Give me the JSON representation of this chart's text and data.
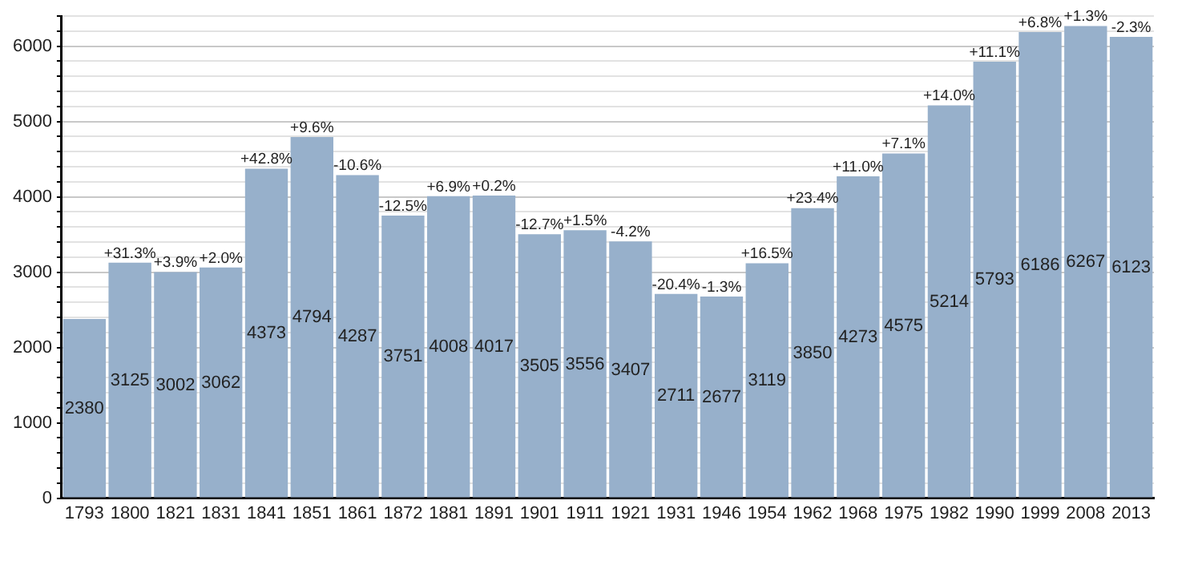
{
  "chart_data": {
    "type": "bar",
    "categories": [
      "1793",
      "1800",
      "1821",
      "1831",
      "1841",
      "1851",
      "1861",
      "1872",
      "1881",
      "1891",
      "1901",
      "1911",
      "1921",
      "1931",
      "1946",
      "1954",
      "1962",
      "1968",
      "1975",
      "1982",
      "1990",
      "1999",
      "2008",
      "2013"
    ],
    "values": [
      2380,
      3125,
      3002,
      3062,
      4373,
      4794,
      4287,
      3751,
      4008,
      4017,
      3505,
      3556,
      3407,
      2711,
      2677,
      3119,
      3850,
      4273,
      4575,
      5214,
      5793,
      6186,
      6267,
      6123
    ],
    "color": "#97b0cb",
    "data_labels": true,
    "ylim": [
      0,
      6400
    ],
    "yticks": [
      0,
      {
        "value": 200,
        "label": null
      },
      {
        "value": 400,
        "label": null
      },
      {
        "value": 600,
        "label": null
      },
      {
        "value": 800,
        "label": null
      },
      1000,
      {
        "value": 1200,
        "label": null
      },
      {
        "value": 1400,
        "label": null
      },
      {
        "value": 1600,
        "label": null
      },
      {
        "value": 1800,
        "label": null
      },
      2000,
      {
        "value": 2200,
        "label": null
      },
      {
        "value": 2400,
        "label": null
      },
      {
        "value": 2600,
        "label": null
      },
      {
        "value": 2800,
        "label": null
      },
      3000,
      {
        "value": 3200,
        "label": null
      },
      {
        "value": 3400,
        "label": null
      },
      {
        "value": 3600,
        "label": null
      },
      {
        "value": 3800,
        "label": null
      },
      4000,
      {
        "value": 4200,
        "label": null
      },
      {
        "value": 4400,
        "label": null
      },
      {
        "value": 4600,
        "label": null
      },
      {
        "value": 4800,
        "label": null
      },
      5000,
      {
        "value": 5200,
        "label": null
      },
      {
        "value": 5400,
        "label": null
      },
      {
        "value": 5600,
        "label": null
      },
      {
        "value": 5800,
        "label": null
      },
      6000,
      {
        "value": 6200,
        "label": null
      },
      {
        "value": 6400,
        "label": null
      }
    ],
    "grid": "y",
    "legend": false,
    "annotations": [
      {
        "text": "+31.3%",
        "x": "1800",
        "y": 3125
      },
      {
        "text": "+3.9%",
        "x": "1821",
        "y": 3002
      },
      {
        "text": "+2.0%",
        "x": "1831",
        "y": 3062
      },
      {
        "text": "+42.8%",
        "x": "1841",
        "y": 4373
      },
      {
        "text": "+9.6%",
        "x": "1851",
        "y": 4794
      },
      {
        "text": "-10.6%",
        "x": "1861",
        "y": 4287
      },
      {
        "text": "-12.5%",
        "x": "1872",
        "y": 3751
      },
      {
        "text": "+6.9%",
        "x": "1881",
        "y": 4008
      },
      {
        "text": "+0.2%",
        "x": "1891",
        "y": 4017
      },
      {
        "text": "-12.7%",
        "x": "1901",
        "y": 3505
      },
      {
        "text": "+1.5%",
        "x": "1911",
        "y": 3556
      },
      {
        "text": "-4.2%",
        "x": "1921",
        "y": 3407
      },
      {
        "text": "-20.4%",
        "x": "1931",
        "y": 2711
      },
      {
        "text": "-1.3%",
        "x": "1946",
        "y": 2677
      },
      {
        "text": "+16.5%",
        "x": "1954",
        "y": 3119
      },
      {
        "text": "+23.4%",
        "x": "1962",
        "y": 3850
      },
      {
        "text": "+11.0%",
        "x": "1968",
        "y": 4273
      },
      {
        "text": "+7.1%",
        "x": "1975",
        "y": 4575
      },
      {
        "text": "+14.0%",
        "x": "1982",
        "y": 5214
      },
      {
        "text": "+11.1%",
        "x": "1990",
        "y": 5793
      },
      {
        "text": "+6.8%",
        "x": "1999",
        "y": 6186
      },
      {
        "text": "+1.3%",
        "x": "2008",
        "y": 6267
      },
      {
        "text": "-2.3%",
        "x": "2013",
        "y": 6123
      }
    ]
  }
}
